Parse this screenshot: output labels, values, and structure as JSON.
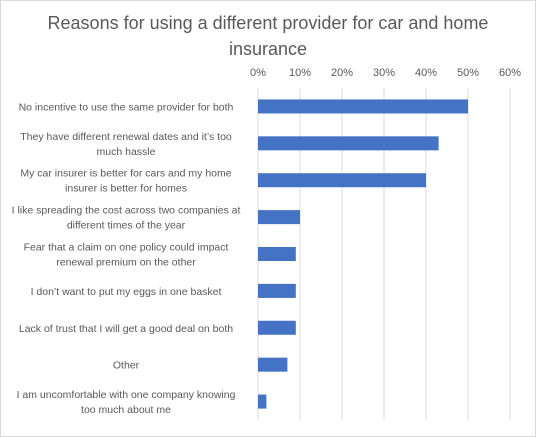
{
  "chart_data": {
    "type": "bar",
    "orientation": "horizontal",
    "title": "Reasons for using a different provider for car and home insurance",
    "xlabel": "",
    "ylabel": "",
    "xlim": [
      0,
      60
    ],
    "ticks": [
      "0%",
      "10%",
      "20%",
      "30%",
      "40%",
      "50%",
      "60%"
    ],
    "tick_values": [
      0,
      10,
      20,
      30,
      40,
      50,
      60
    ],
    "axis_position": "top",
    "grid": true,
    "legend": "none",
    "bar_color": "#4472c4",
    "categories": [
      [
        "No incentive to use the same provider for both"
      ],
      [
        "They have different renewal dates and it’s too",
        "much hassle"
      ],
      [
        "My car insurer is better for cars and my home",
        "insurer is better for homes"
      ],
      [
        "I like spreading the cost across two companies at",
        "different times of the year"
      ],
      [
        "Fear that a claim on one policy could impact",
        "renewal premium on the other"
      ],
      [
        "I don’t want to put my eggs in one basket"
      ],
      [
        "Lack of trust that I will get a good deal on both"
      ],
      [
        "Other"
      ],
      [
        "I am uncomfortable with one company knowing",
        "too much about me"
      ]
    ],
    "values": [
      50,
      43,
      40,
      10,
      9,
      9,
      9,
      7,
      2
    ]
  }
}
